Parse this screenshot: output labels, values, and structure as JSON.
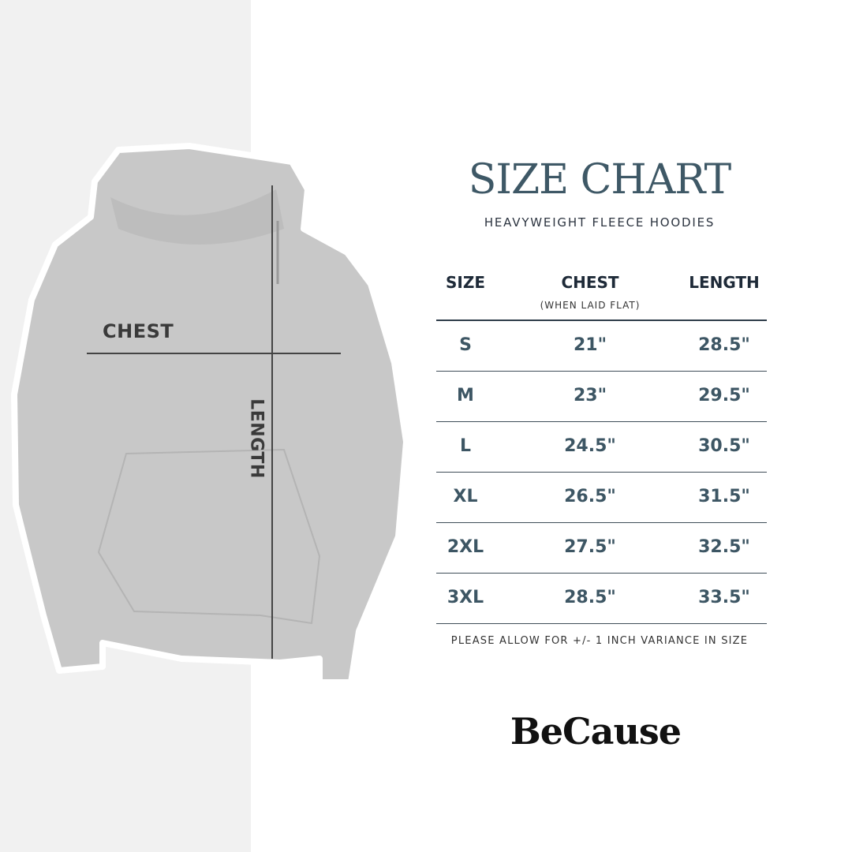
{
  "title": "SIZE CHART",
  "subtitle": "HEAVYWEIGHT FLEECE HOODIES",
  "diagram": {
    "chest_label": "CHEST",
    "length_label": "LENGTH"
  },
  "table": {
    "headers": {
      "size": "SIZE",
      "chest": "CHEST",
      "chest_note": "(WHEN LAID FLAT)",
      "length": "LENGTH"
    },
    "rows": [
      {
        "size": "S",
        "chest": "21\"",
        "length": "28.5\""
      },
      {
        "size": "M",
        "chest": "23\"",
        "length": "29.5\""
      },
      {
        "size": "L",
        "chest": "24.5\"",
        "length": "30.5\""
      },
      {
        "size": "XL",
        "chest": "26.5\"",
        "length": "31.5\""
      },
      {
        "size": "2XL",
        "chest": "27.5\"",
        "length": "32.5\""
      },
      {
        "size": "3XL",
        "chest": "28.5\"",
        "length": "33.5\""
      }
    ]
  },
  "footnote": "PLEASE ALLOW FOR +/- 1 INCH VARIANCE IN SIZE",
  "logo": "BeCause",
  "colors": {
    "title": "#3e5866",
    "values": "#3d5664",
    "header": "#1e2a38",
    "left_panel": "#f1f1f1",
    "hoodie": "#c9c9c9"
  }
}
